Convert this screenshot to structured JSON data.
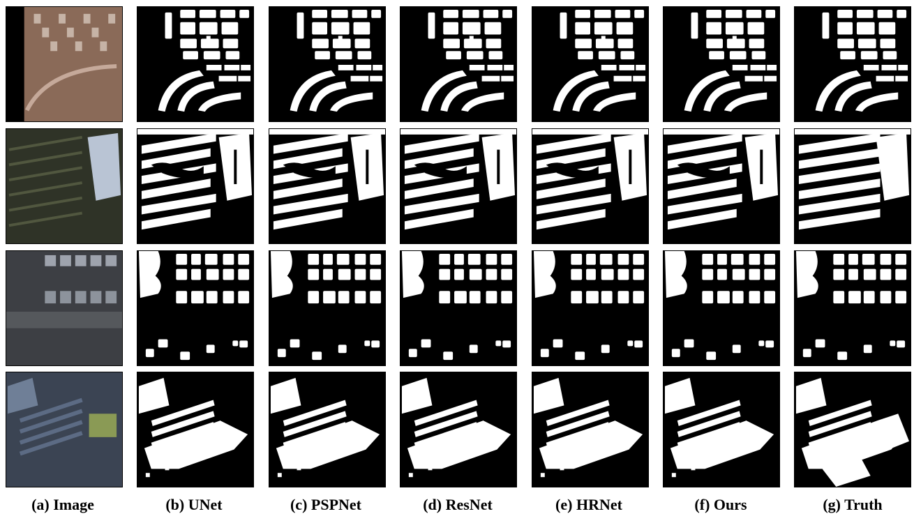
{
  "figure": {
    "columns": [
      {
        "id": "image",
        "caption": "(a) Image"
      },
      {
        "id": "unet",
        "caption": "(b) UNet"
      },
      {
        "id": "pspnet",
        "caption": "(c) PSPNet"
      },
      {
        "id": "resnet",
        "caption": "(d) ResNet"
      },
      {
        "id": "hrnet",
        "caption": "(e) HRNet"
      },
      {
        "id": "ours",
        "caption": "(f) Ours"
      },
      {
        "id": "truth",
        "caption": "(g) Truth"
      }
    ],
    "rows": [
      {
        "id": "row-1",
        "scene": "curved residential blocks"
      },
      {
        "id": "row-2",
        "scene": "parallel greenhouse strips"
      },
      {
        "id": "row-3",
        "scene": "gridded houses beside road"
      },
      {
        "id": "row-4",
        "scene": "industrial buildings"
      }
    ]
  }
}
